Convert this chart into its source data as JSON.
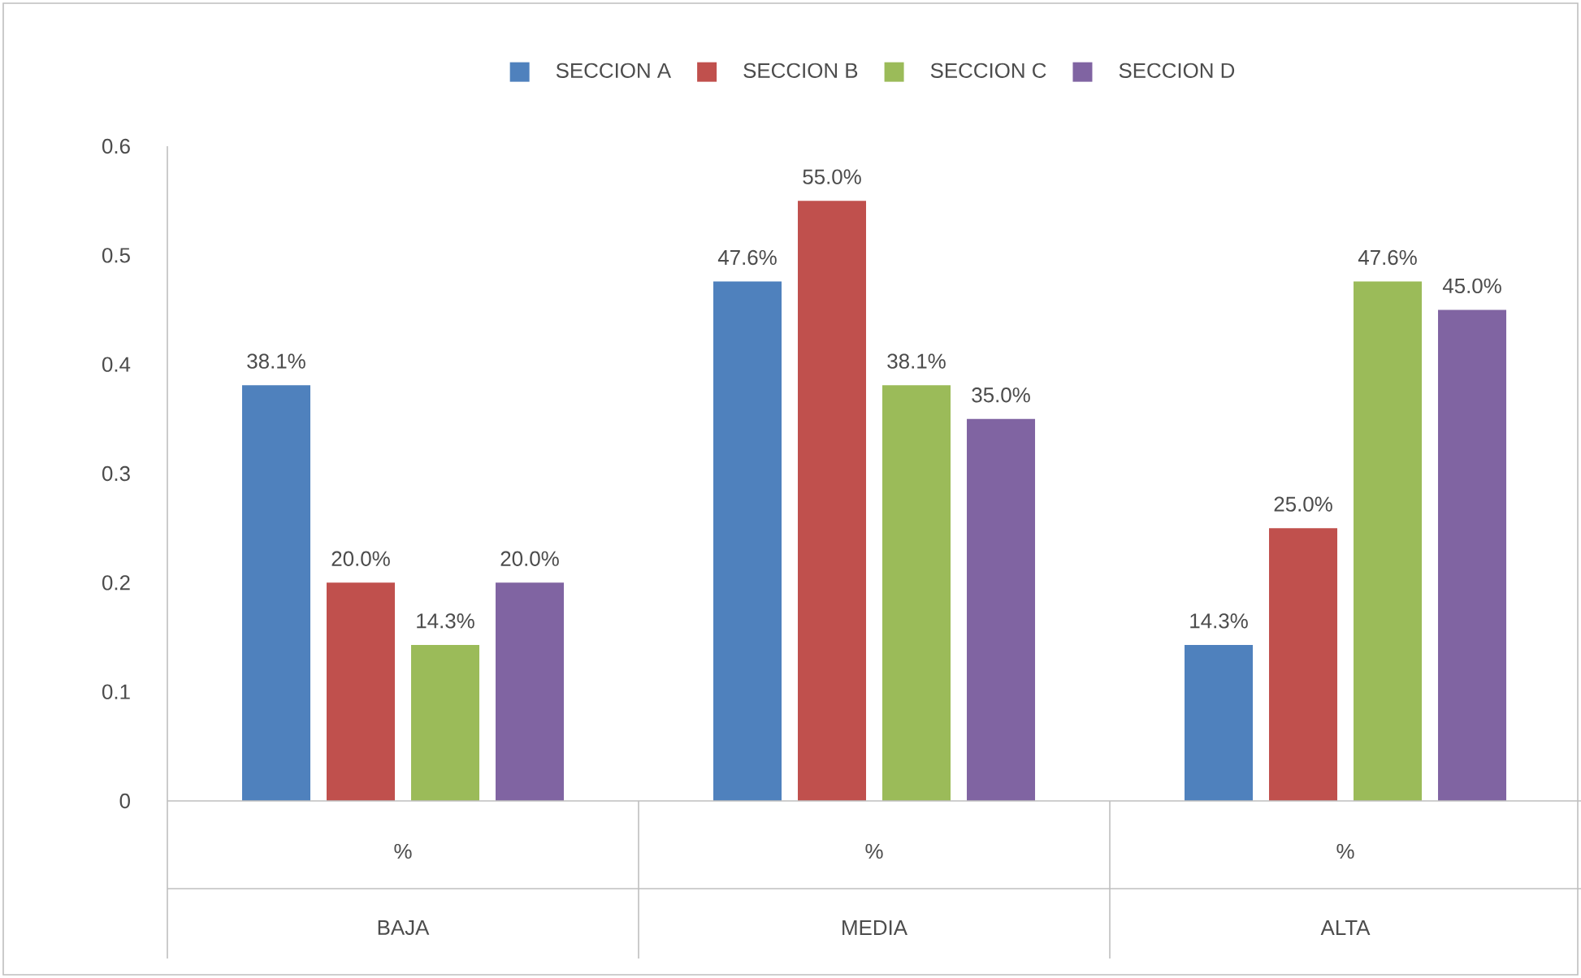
{
  "chart_data": {
    "type": "bar",
    "categories": [
      "BAJA",
      "MEDIA",
      "ALTA"
    ],
    "series": [
      {
        "name": "SECCION  A",
        "color": "#4f81bd",
        "values": [
          0.381,
          0.476,
          0.143
        ],
        "value_labels": [
          "38.1%",
          "47.6%",
          "14.3%"
        ]
      },
      {
        "name": "SECCION  B",
        "color": "#c0504d",
        "values": [
          0.2,
          0.55,
          0.25
        ],
        "value_labels": [
          "20.0%",
          "55.0%",
          "25.0%"
        ]
      },
      {
        "name": "SECCION  C",
        "color": "#9bbb59",
        "values": [
          0.143,
          0.381,
          0.476
        ],
        "value_labels": [
          "14.3%",
          "38.1%",
          "47.6%"
        ]
      },
      {
        "name": "SECCION  D",
        "color": "#8064a2",
        "values": [
          0.2,
          0.35,
          0.45
        ],
        "value_labels": [
          "20.0%",
          "35.0%",
          "45.0%"
        ]
      }
    ],
    "annotations": [
      "%",
      "%",
      "%"
    ],
    "ylim": [
      0,
      0.6
    ],
    "yticks": [
      0,
      0.1,
      0.2,
      0.3,
      0.4,
      0.5,
      0.6
    ],
    "legend": "top"
  }
}
